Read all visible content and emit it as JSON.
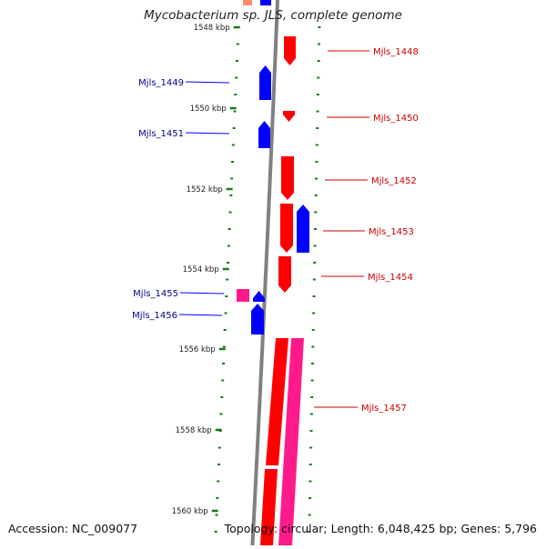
{
  "title": "Mycobacterium sp. JLS, complete genome",
  "footer": {
    "accession": "Accession: NC_009077",
    "summary": "Topology: circular; Length: 6,048,425 bp; Genes: 5,796"
  },
  "colors": {
    "backbone": "#808080",
    "tick": "#1a7a1a",
    "forward_gene": "#ff0000",
    "forward_gene_alt": "#ff1a8c",
    "reverse_gene": "#0000ff",
    "reverse_label": "#00008b",
    "forward_label": "#cc0000"
  },
  "scale": {
    "labels": [
      "1548 kbp",
      "1550 kbp",
      "1552 kbp",
      "1554 kbp",
      "1556 kbp",
      "1558 kbp",
      "1560 kbp"
    ]
  },
  "gene_labels": {
    "forward": [
      "Mjls_1448",
      "Mjls_1450",
      "Mjls_1452",
      "Mjls_1453",
      "Mjls_1454",
      "Mjls_1457"
    ],
    "reverse": [
      "Mjls_1449",
      "Mjls_1451",
      "Mjls_1455",
      "Mjls_1456"
    ]
  }
}
